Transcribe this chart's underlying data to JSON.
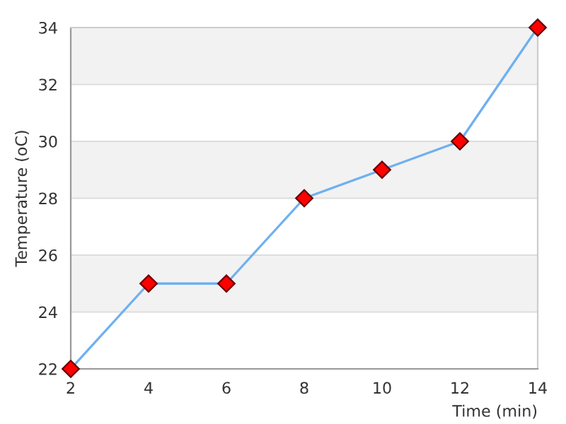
{
  "chart_data": {
    "type": "line",
    "xlabel": "Time (min)",
    "ylabel": "Temperature (oC)",
    "x": [
      2,
      4,
      6,
      8,
      10,
      12,
      14
    ],
    "series": [
      {
        "color": "#70b0f0",
        "colors": [
          "#ff0000",
          "#ff0000",
          "#ff0000",
          "#ff0000",
          "#ff0000",
          "#ff0000",
          "#ff0000"
        ],
        "values": [
          22,
          25,
          25,
          28,
          29,
          30,
          34
        ]
      }
    ],
    "marker": "diamond",
    "xlim": [
      2,
      14
    ],
    "xticks": [
      2,
      4,
      6,
      8,
      10,
      12,
      14
    ],
    "ylim": [
      22,
      34
    ],
    "yticks": [
      22,
      24,
      26,
      28,
      30,
      32,
      34
    ],
    "grid": "y",
    "legend": false,
    "bands": [
      {
        "axis": "y",
        "from": 24,
        "to": 26,
        "color": "#f2f2f2"
      },
      {
        "axis": "y",
        "from": 28,
        "to": 30,
        "color": "#f2f2f2"
      },
      {
        "axis": "y",
        "from": 32,
        "to": 34,
        "color": "#f2f2f2"
      }
    ]
  }
}
